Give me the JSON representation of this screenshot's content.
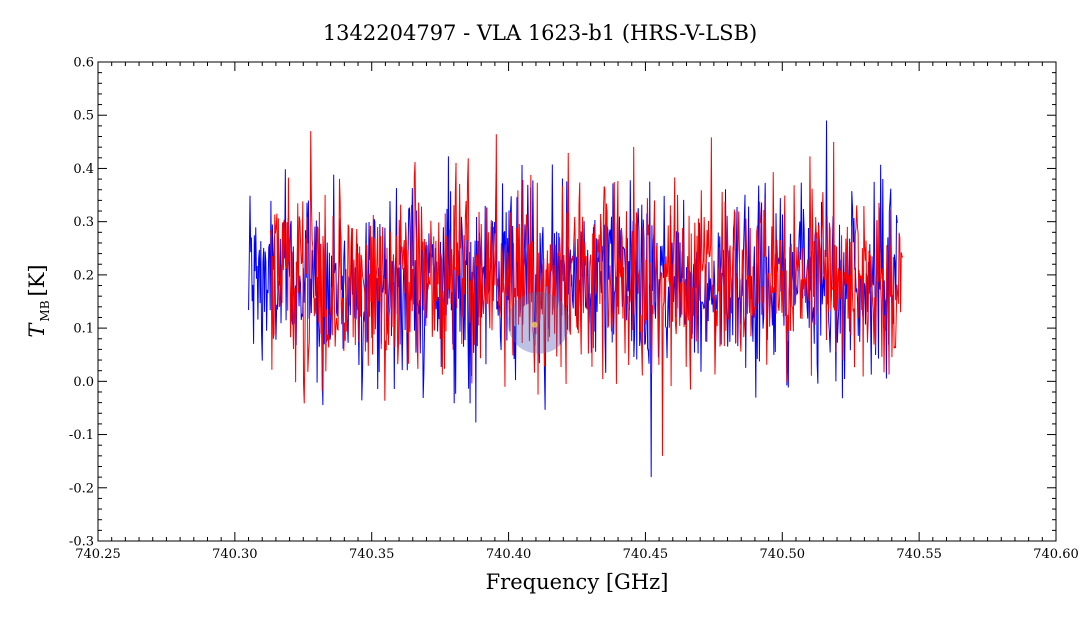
{
  "chart_data": {
    "type": "line",
    "title": "1342204797 - VLA 1623-b1 (HRS-V-LSB)",
    "xlabel": "Frequency [GHz]",
    "ylabel_main": "T",
    "ylabel_sub": "MB",
    "ylabel_unit": "[K]",
    "xlim": [
      740.25,
      740.6
    ],
    "ylim": [
      -0.3,
      0.6
    ],
    "x_ticks": [
      740.25,
      740.3,
      740.35,
      740.4,
      740.45,
      740.5,
      740.55,
      740.6
    ],
    "x_tick_labels": [
      "740.25",
      "740.30",
      "740.35",
      "740.40",
      "740.45",
      "740.50",
      "740.55",
      "740.60"
    ],
    "y_ticks": [
      -0.3,
      -0.2,
      -0.1,
      0.0,
      0.1,
      0.2,
      0.3,
      0.4,
      0.5,
      0.6
    ],
    "y_tick_labels": [
      "-0.3",
      "-0.2",
      "-0.1",
      "0.0",
      "0.1",
      "0.2",
      "0.3",
      "0.4",
      "0.5",
      "0.6"
    ],
    "grid": false,
    "series": [
      {
        "color": "#0000ff",
        "x_range": [
          740.305,
          740.542
        ],
        "mean": 0.19,
        "noise_sigma": 0.085,
        "n_points": 900,
        "y_min": -0.18,
        "y_max": 0.49
      },
      {
        "color": "#ff0000",
        "x_range": [
          740.313,
          740.544
        ],
        "mean": 0.19,
        "noise_sigma": 0.09,
        "n_points": 880,
        "y_min": -0.14,
        "y_max": 0.45
      }
    ],
    "watermark": {
      "x": 740.411,
      "y": 0.11,
      "color": "#5566bb"
    }
  }
}
